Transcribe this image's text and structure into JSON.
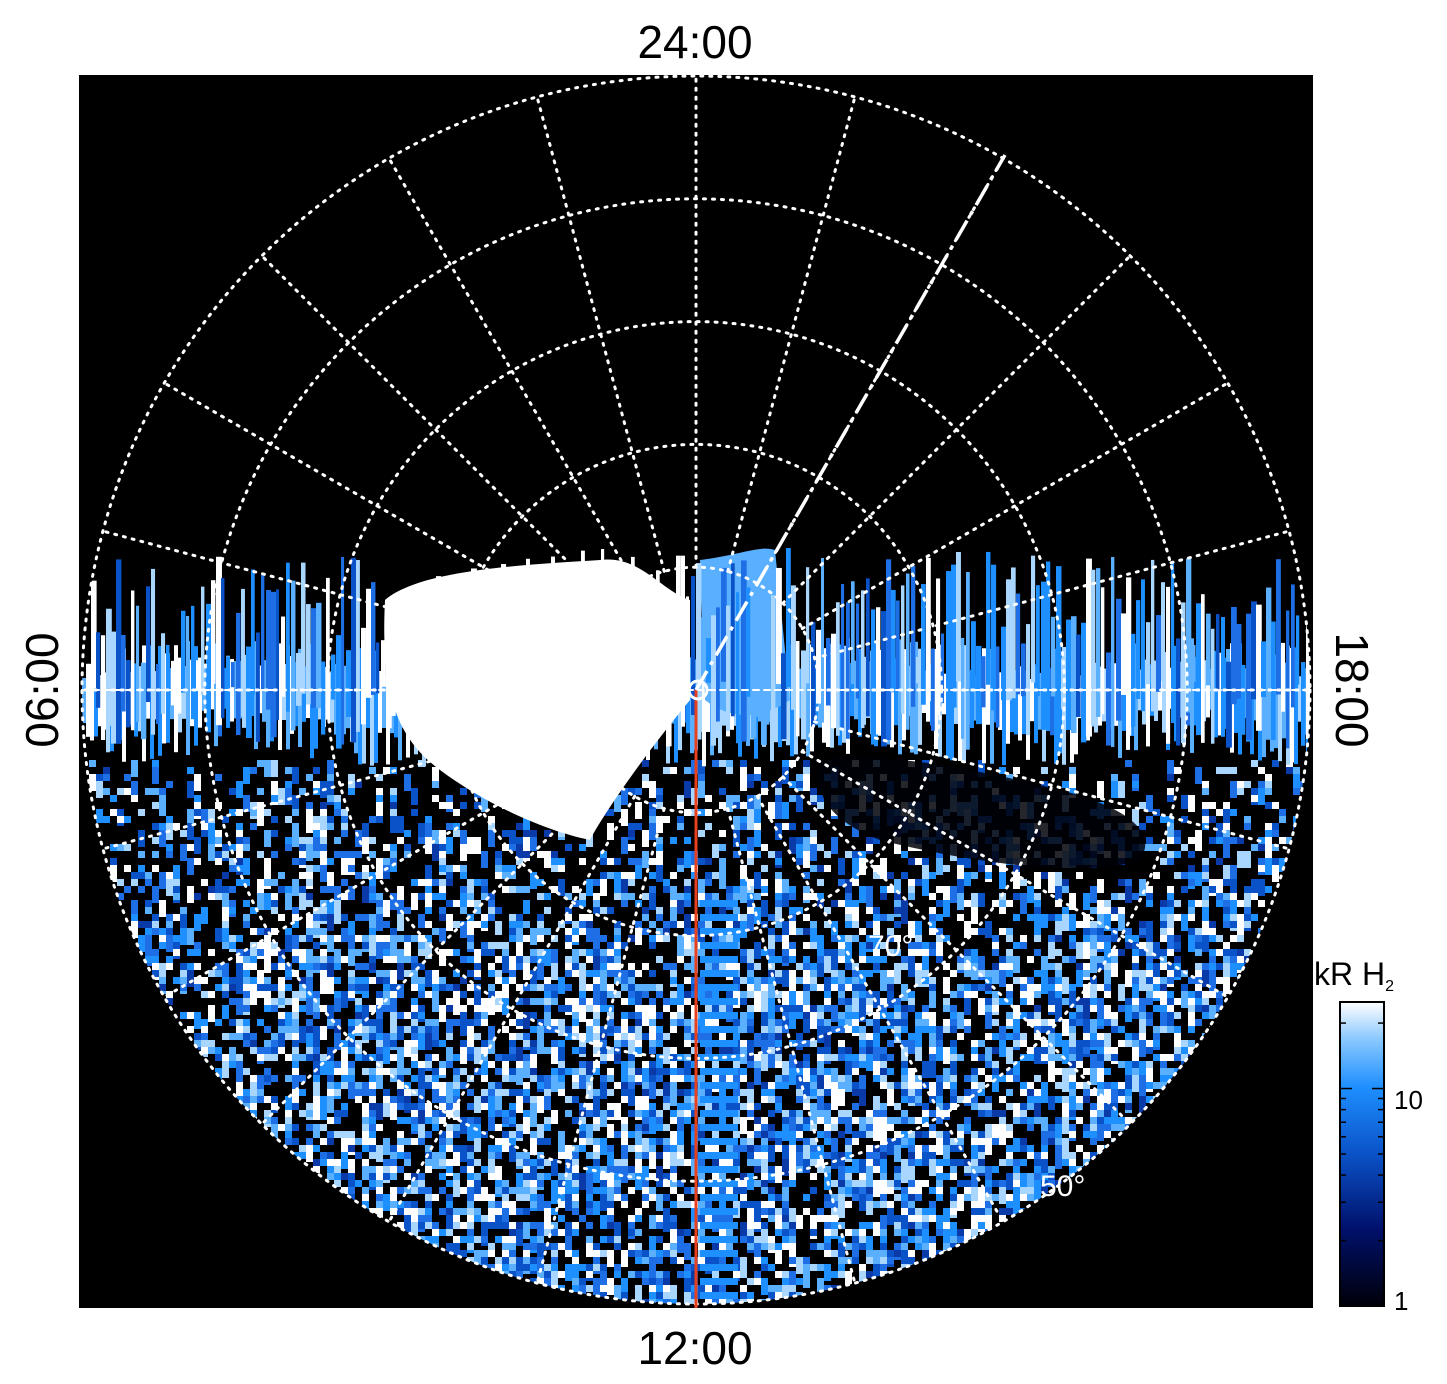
{
  "chart_data": {
    "type": "heatmap",
    "projection": "polar",
    "title": "",
    "local_time_labels": {
      "top": "24:00",
      "bottom": "12:00",
      "left": "06:00",
      "right": "18:00"
    },
    "latitude_labels": [
      "70°",
      "50°"
    ],
    "latitude_grid_deg": [
      80,
      70,
      60,
      50
    ],
    "longitude_grid_step_deg": 15,
    "lat_range": [
      40,
      90
    ],
    "colorbar": {
      "label_main": "kR H",
      "label_sub": "2",
      "scale": "log",
      "range": [
        1,
        25
      ],
      "ticks": [
        {
          "value": 1,
          "label": "1"
        },
        {
          "value": 10,
          "label": "10"
        }
      ]
    },
    "colors": {
      "background": "#000000",
      "low": "#000022",
      "mid": "#1e8fff",
      "high": "#ffffff",
      "grid": "#ffffff",
      "reference_line": "#e8401c"
    }
  }
}
